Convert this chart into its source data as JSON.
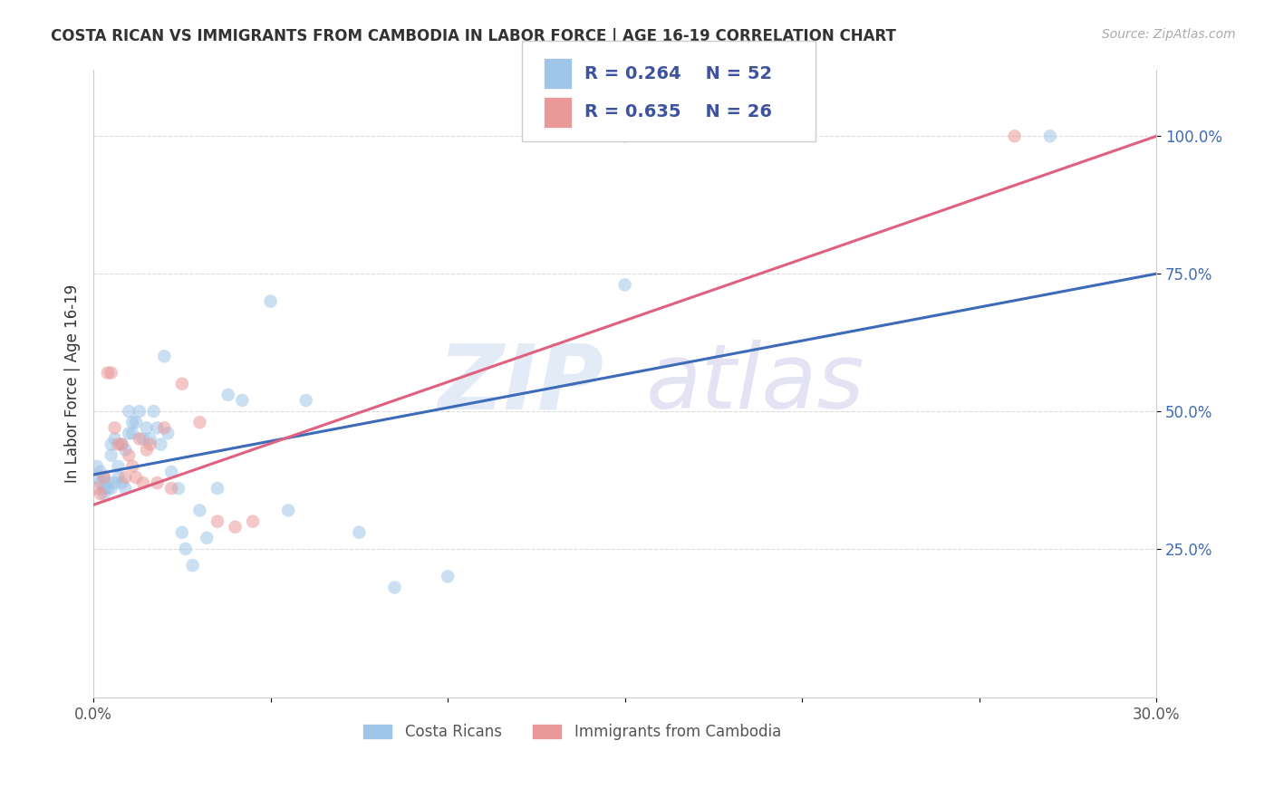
{
  "title": "COSTA RICAN VS IMMIGRANTS FROM CAMBODIA IN LABOR FORCE | AGE 16-19 CORRELATION CHART",
  "source": "Source: ZipAtlas.com",
  "ylabel": "In Labor Force | Age 16-19",
  "xlim": [
    0.0,
    0.3
  ],
  "ylim": [
    -0.02,
    1.12
  ],
  "ytick_positions": [
    0.25,
    0.5,
    0.75,
    1.0
  ],
  "ytick_labels": [
    "25.0%",
    "50.0%",
    "75.0%",
    "100.0%"
  ],
  "blue_color": "#9fc5e8",
  "pink_color": "#ea9999",
  "blue_line_color": "#3d6bba",
  "pink_line_color": "#e06080",
  "legend_r_blue": "0.264",
  "legend_n_blue": "52",
  "legend_r_pink": "0.635",
  "legend_n_pink": "26",
  "legend_text_color": "#3d52a0",
  "grid_color": "#cccccc",
  "background_color": "#ffffff",
  "marker_size": 110,
  "marker_alpha": 0.55,
  "line_width": 2.2,
  "blue_scatter_x": [
    0.001,
    0.001,
    0.002,
    0.002,
    0.003,
    0.003,
    0.003,
    0.004,
    0.004,
    0.005,
    0.005,
    0.005,
    0.006,
    0.006,
    0.007,
    0.007,
    0.008,
    0.008,
    0.009,
    0.009,
    0.01,
    0.01,
    0.011,
    0.011,
    0.012,
    0.013,
    0.014,
    0.015,
    0.016,
    0.017,
    0.018,
    0.019,
    0.02,
    0.021,
    0.022,
    0.024,
    0.025,
    0.026,
    0.028,
    0.03,
    0.032,
    0.035,
    0.038,
    0.042,
    0.05,
    0.055,
    0.06,
    0.075,
    0.085,
    0.1,
    0.15,
    0.27
  ],
  "blue_scatter_y": [
    0.38,
    0.4,
    0.37,
    0.39,
    0.36,
    0.38,
    0.35,
    0.36,
    0.37,
    0.36,
    0.42,
    0.44,
    0.37,
    0.45,
    0.38,
    0.4,
    0.37,
    0.44,
    0.36,
    0.43,
    0.46,
    0.5,
    0.46,
    0.48,
    0.48,
    0.5,
    0.45,
    0.47,
    0.45,
    0.5,
    0.47,
    0.44,
    0.6,
    0.46,
    0.39,
    0.36,
    0.28,
    0.25,
    0.22,
    0.32,
    0.27,
    0.36,
    0.53,
    0.52,
    0.7,
    0.32,
    0.52,
    0.28,
    0.18,
    0.2,
    0.73,
    1.0
  ],
  "pink_scatter_x": [
    0.001,
    0.002,
    0.003,
    0.004,
    0.005,
    0.006,
    0.007,
    0.008,
    0.009,
    0.01,
    0.011,
    0.012,
    0.013,
    0.014,
    0.015,
    0.016,
    0.018,
    0.02,
    0.022,
    0.025,
    0.03,
    0.035,
    0.04,
    0.045,
    0.15,
    0.26
  ],
  "pink_scatter_y": [
    0.36,
    0.35,
    0.38,
    0.57,
    0.57,
    0.47,
    0.44,
    0.44,
    0.38,
    0.42,
    0.4,
    0.38,
    0.45,
    0.37,
    0.43,
    0.44,
    0.37,
    0.47,
    0.36,
    0.55,
    0.48,
    0.3,
    0.29,
    0.3,
    1.0,
    1.0
  ],
  "blue_line_x0": 0.0,
  "blue_line_y0": 0.385,
  "blue_line_x1": 0.3,
  "blue_line_y1": 0.75,
  "pink_line_x0": 0.0,
  "pink_line_y0": 0.33,
  "pink_line_x1": 0.3,
  "pink_line_y1": 1.0
}
